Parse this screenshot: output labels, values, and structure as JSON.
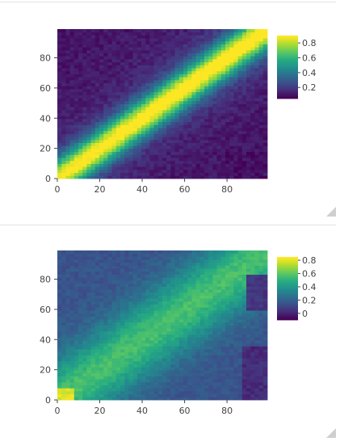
{
  "chart_data": [
    {
      "type": "heatmap",
      "title": "",
      "xlabel": "",
      "ylabel": "",
      "x_range": [
        0,
        99
      ],
      "y_range": [
        0,
        99
      ],
      "x_ticks": [
        "0",
        "20",
        "40",
        "60",
        "80"
      ],
      "y_ticks": [
        "0",
        "20",
        "40",
        "60",
        "80"
      ],
      "colorscale": "viridis",
      "zrange": [
        0.05,
        0.9
      ],
      "colorbar_ticks": [
        "0.2",
        "0.4",
        "0.6",
        "0.8"
      ],
      "pattern": {
        "description_values": {
          "diagonal_peak": 0.85,
          "off_diagonal_floor": 0.1,
          "corner_top_left": 0.05,
          "corner_bottom_right": 0.05
        },
        "structure": "strong-diagonal"
      },
      "grid": false,
      "legend": "colorbar-right"
    },
    {
      "type": "heatmap",
      "title": "",
      "xlabel": "",
      "ylabel": "",
      "x_range": [
        0,
        99
      ],
      "y_range": [
        0,
        99
      ],
      "x_ticks": [
        "0",
        "20",
        "40",
        "60",
        "80"
      ],
      "y_ticks": [
        "0",
        "20",
        "40",
        "60",
        "80"
      ],
      "colorscale": "viridis",
      "zrange": [
        -0.1,
        0.85
      ],
      "colorbar_ticks": [
        "0",
        "0.2",
        "0.4",
        "0.6",
        "0.8"
      ],
      "pattern": {
        "description_values": {
          "diagonal_peak": 0.75,
          "off_diagonal_floor": 0.15,
          "corner_top_left": 0.1,
          "corner_bottom_right": 0.0
        },
        "structure": "diffuse-diagonal"
      },
      "grid": false,
      "legend": "colorbar-right"
    }
  ]
}
